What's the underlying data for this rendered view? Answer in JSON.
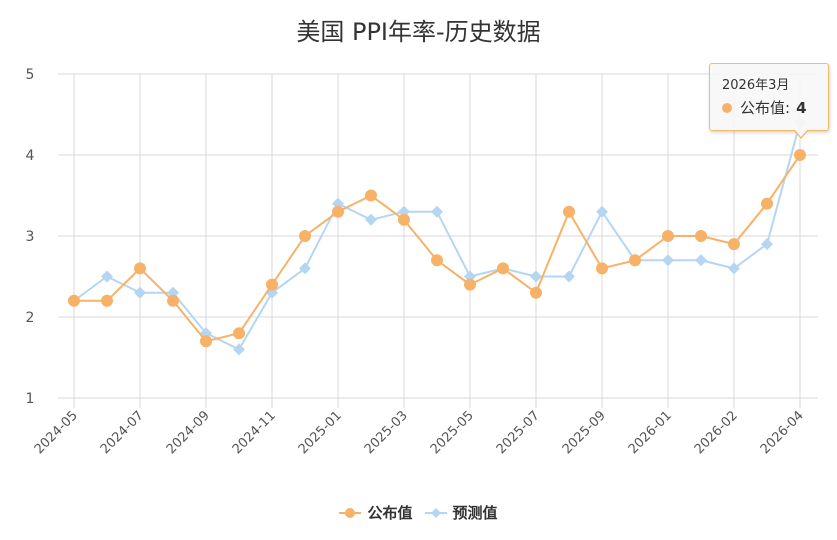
{
  "title": "美国 PPI年率-历史数据",
  "colors": {
    "actual": "#f7b267",
    "forecast": "#b5d6f2",
    "grid": "#d9d9de",
    "tooltip_border": "#f7b867"
  },
  "tooltip": {
    "date": "2026年3月",
    "series_label": "公布值",
    "separator": ":",
    "value": "4"
  },
  "legend": {
    "items": [
      {
        "label": "公布值",
        "symbol": "circle"
      },
      {
        "label": "预测值",
        "symbol": "diamond"
      }
    ]
  },
  "chart_data": {
    "type": "line",
    "title": "美国 PPI年率-历史数据",
    "xlabel": "",
    "ylabel": "",
    "ylim": [
      1,
      5
    ],
    "yticks": [
      1,
      2,
      3,
      4,
      5
    ],
    "grid": true,
    "legend_position": "bottom",
    "x_tick_labels": [
      "2024-05",
      "2024-07",
      "2024-09",
      "2024-11",
      "2025-01",
      "2025-03",
      "2025-05",
      "2025-07",
      "2025-09",
      "2026-01",
      "2026-02",
      "2026-04"
    ],
    "categories": [
      "2024-05",
      "2024-06",
      "2024-07",
      "2024-08",
      "2024-09",
      "2024-10",
      "2024-11",
      "2024-12",
      "2025-01",
      "2025-02",
      "2025-03",
      "2025-04",
      "2025-05",
      "2025-06",
      "2025-07",
      "2025-08",
      "2025-09",
      "",
      "2026-01",
      "",
      "2026-02",
      "",
      "2026-04"
    ],
    "series": [
      {
        "name": "公布值",
        "marker": "circle",
        "color": "#f7b267",
        "values": [
          2.2,
          2.2,
          2.6,
          2.2,
          1.7,
          1.8,
          2.4,
          3.0,
          3.3,
          3.5,
          3.2,
          2.7,
          2.4,
          2.6,
          2.3,
          3.3,
          2.6,
          2.7,
          3.0,
          3.0,
          2.9,
          3.4,
          4.0
        ]
      },
      {
        "name": "预测值",
        "marker": "diamond",
        "color": "#b5d6f2",
        "values": [
          2.2,
          2.5,
          2.3,
          2.3,
          1.8,
          1.6,
          2.3,
          2.6,
          3.4,
          3.2,
          3.3,
          3.3,
          2.5,
          2.6,
          2.5,
          2.5,
          3.3,
          2.7,
          2.7,
          2.7,
          2.6,
          2.9,
          4.4
        ]
      }
    ],
    "annotations": [
      {
        "type": "tooltip",
        "index": 22,
        "text": "2026年3月 公布值: 4"
      }
    ]
  }
}
